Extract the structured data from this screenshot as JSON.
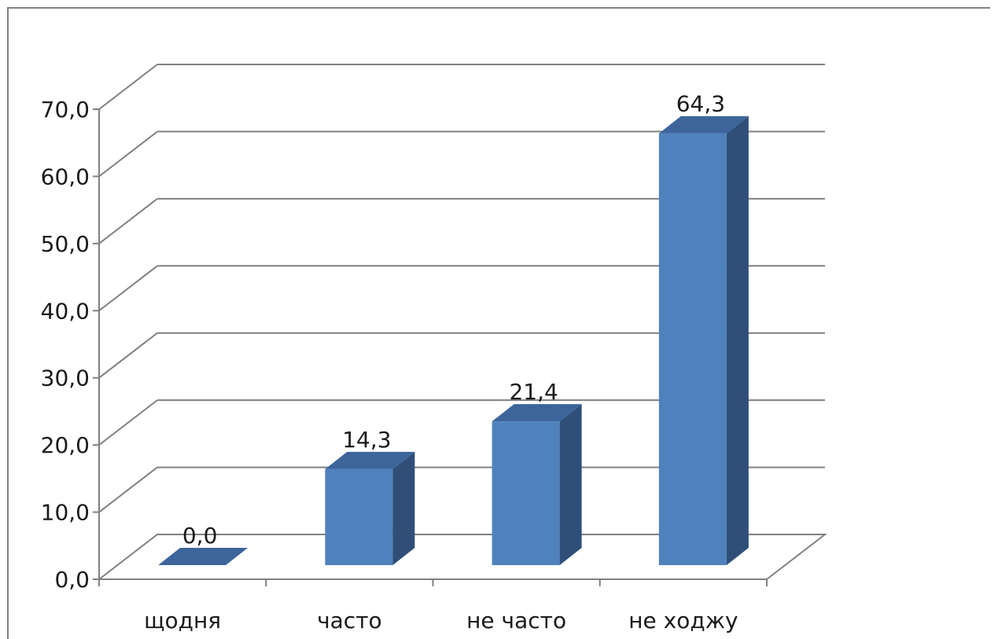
{
  "chart_data": {
    "type": "bar",
    "categories": [
      "щодня",
      "часто",
      "не часто",
      "не ходжу"
    ],
    "values": [
      0.0,
      14.3,
      21.4,
      64.3
    ],
    "data_labels": [
      "0,0",
      "14,3",
      "21,4",
      "64,3"
    ],
    "y_ticks": [
      0,
      10,
      20,
      30,
      40,
      50,
      60,
      70
    ],
    "y_tick_labels": [
      "0,0",
      "10,0",
      "20,0",
      "30,0",
      "40,0",
      "50,0",
      "60,0",
      "70,0"
    ],
    "ylim": [
      0,
      70
    ],
    "grid": true,
    "legend": "none",
    "style": "3d-column",
    "colors": {
      "bar_front": "#4f81bd",
      "bar_top": "#3d659b",
      "bar_side": "#2f4f79",
      "grid": "#808080",
      "axis": "#808080",
      "frame": "#808080"
    }
  }
}
